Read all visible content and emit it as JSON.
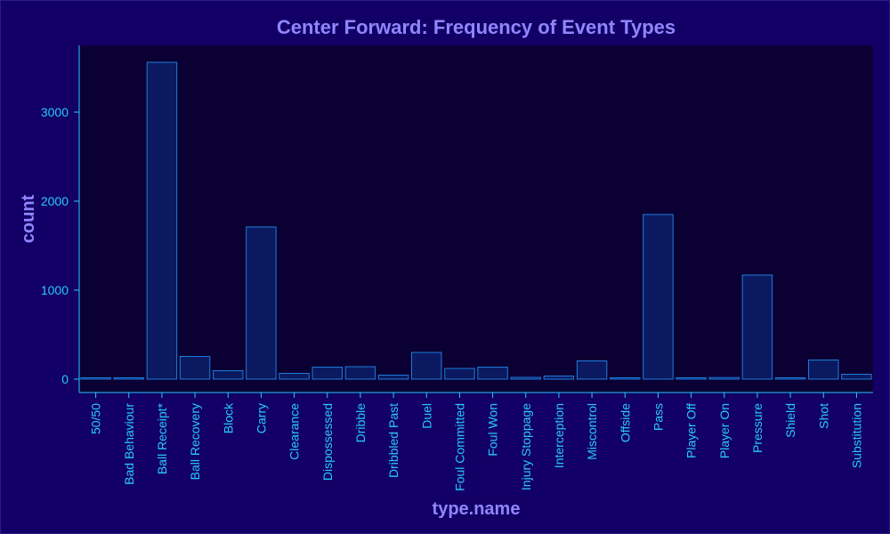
{
  "chart_data": {
    "type": "bar",
    "title": "Center Forward: Frequency of Event Types",
    "xlabel": "type.name",
    "ylabel": "count",
    "categories": [
      "50/50",
      "Bad Behaviour",
      "Ball Receipt*",
      "Ball Recovery",
      "Block",
      "Carry",
      "Clearance",
      "Dispossessed",
      "Dribble",
      "Dribbled Past",
      "Duel",
      "Foul Committed",
      "Foul Won",
      "Injury Stoppage",
      "Interception",
      "Miscontrol",
      "Offside",
      "Pass",
      "Player Off",
      "Player On",
      "Pressure",
      "Shield",
      "Shot",
      "Substitution"
    ],
    "values": [
      15,
      12,
      3560,
      255,
      95,
      1710,
      65,
      135,
      140,
      45,
      300,
      120,
      135,
      20,
      35,
      205,
      5,
      1850,
      15,
      18,
      1170,
      3,
      215,
      55
    ],
    "ylim": [
      -150,
      3750
    ],
    "yticks": [
      0,
      1000,
      2000,
      3000
    ],
    "grid": false,
    "colors": {
      "page_background": "#130066",
      "plot_background": "#0a0033",
      "bar_fill": "#0b1a60",
      "bar_stroke": "#1f7bdc",
      "axis_line": "#28c8ff",
      "title": "#8f86ff",
      "tick_text": "#28c8ff"
    }
  }
}
